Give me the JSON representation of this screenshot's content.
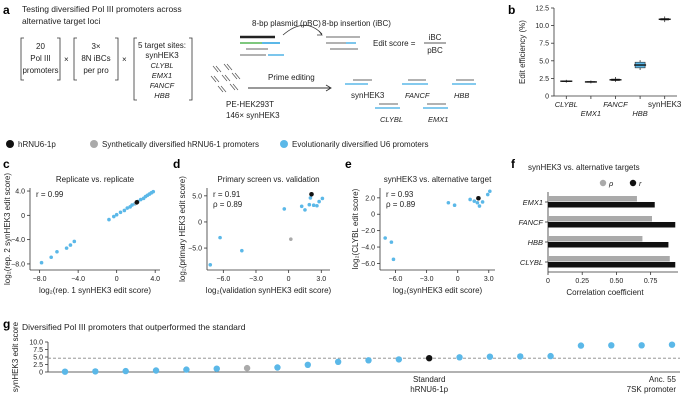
{
  "colors": {
    "black": "#111111",
    "grey": "#aaaaaa",
    "blue": "#5bb8e8",
    "pbc": "#333333",
    "ibc": "#7ec87e"
  },
  "panel_a": {
    "label": "a",
    "title_line1": "Testing diversified Pol III promoters across",
    "title_line2": "alternative target loci",
    "box1": [
      "20",
      "Pol III",
      "promoters"
    ],
    "box2": [
      "3×",
      "8N iBCs",
      "per pro"
    ],
    "box3": [
      "5 target sites:",
      "synHEK3",
      "CLYBL",
      "EMX1",
      "FANCF",
      "HBB"
    ],
    "times": "×",
    "plasmid_label": "8-bp plasmid (pBC)",
    "insertion_label": "8-bp insertion (iBC)",
    "edit_score_label": "Edit score =",
    "frac_num": "iBC",
    "frac_den": "pBC",
    "prime_editing": "Prime editing",
    "cell_line": "PE-HEK293T",
    "copies": "146× synHEK3",
    "sites": [
      "synHEK3",
      "FANCF",
      "HBB",
      "CLYBL",
      "EMX1"
    ]
  },
  "legend": {
    "items": [
      {
        "label": "hRNU6-1p",
        "color": "#111111"
      },
      {
        "label": "Synthetically diversified hRNU6-1 promoters",
        "color": "#aaaaaa"
      },
      {
        "label": "Evolutionarily diversified U6 promoters",
        "color": "#5bb8e8"
      }
    ]
  },
  "chart_data": [
    {
      "panel": "b",
      "type": "box",
      "ylabel": "Edit efficiency (%)",
      "ylim": [
        0,
        12.5
      ],
      "yticks": [
        "0",
        "2.5",
        "5.0",
        "7.5",
        "10.0",
        "12.5"
      ],
      "categories": [
        "CLYBL",
        "EMX1",
        "FANCF",
        "HBB",
        "synHEK3"
      ],
      "medians": [
        2.1,
        2.0,
        2.3,
        4.4,
        10.9
      ],
      "q1": [
        2.05,
        1.95,
        2.2,
        4.0,
        10.8
      ],
      "q3": [
        2.15,
        2.05,
        2.4,
        4.8,
        11.0
      ],
      "whisker_low": [
        1.9,
        1.8,
        2.0,
        3.7,
        10.5
      ],
      "whisker_high": [
        2.3,
        2.2,
        2.7,
        5.1,
        11.3
      ],
      "box_colors": [
        "#111111",
        "#111111",
        "#111111",
        "#5bb8e8",
        "#111111"
      ]
    },
    {
      "panel": "c",
      "type": "scatter",
      "title": "Replicate vs. replicate",
      "xlabel": "log₂(rep. 1 synHEK3 edit score)",
      "ylabel": "log₂(rep. 2 synHEK3 edit score)",
      "xlim": [
        -9,
        4.5
      ],
      "ylim": [
        -9,
        4.5
      ],
      "xticks": [
        -8,
        -4,
        0,
        4
      ],
      "yticks": [
        -8,
        -4,
        0,
        4
      ],
      "xtick_labels": [
        "−8.0",
        "−4.0",
        "0",
        "4.0"
      ],
      "ytick_labels": [
        "−8.0",
        "−4.0",
        "0",
        "4.0"
      ],
      "annotation": "r = 0.99",
      "points": [
        {
          "x": -7.8,
          "y": -7.8,
          "g": 2
        },
        {
          "x": -6.8,
          "y": -6.9,
          "g": 2
        },
        {
          "x": -6.2,
          "y": -6.0,
          "g": 2
        },
        {
          "x": -5.2,
          "y": -5.4,
          "g": 2
        },
        {
          "x": -4.8,
          "y": -4.9,
          "g": 2
        },
        {
          "x": -4.4,
          "y": -4.3,
          "g": 2
        },
        {
          "x": -0.8,
          "y": -0.7,
          "g": 2
        },
        {
          "x": -0.3,
          "y": -0.2,
          "g": 2
        },
        {
          "x": 0.0,
          "y": 0.1,
          "g": 2
        },
        {
          "x": 0.4,
          "y": 0.5,
          "g": 2
        },
        {
          "x": 0.8,
          "y": 0.8,
          "g": 2
        },
        {
          "x": 1.1,
          "y": 1.2,
          "g": 2
        },
        {
          "x": 1.4,
          "y": 1.4,
          "g": 2
        },
        {
          "x": 1.6,
          "y": 1.7,
          "g": 2
        },
        {
          "x": 1.9,
          "y": 1.9,
          "g": 2
        },
        {
          "x": 2.2,
          "y": 2.3,
          "g": 2
        },
        {
          "x": 2.5,
          "y": 2.6,
          "g": 2
        },
        {
          "x": 2.8,
          "y": 2.8,
          "g": 2
        },
        {
          "x": 3.0,
          "y": 3.1,
          "g": 2
        },
        {
          "x": 3.2,
          "y": 3.3,
          "g": 2
        },
        {
          "x": 3.4,
          "y": 3.5,
          "g": 2
        },
        {
          "x": 3.6,
          "y": 3.7,
          "g": 2
        },
        {
          "x": 3.8,
          "y": 3.9,
          "g": 2
        },
        {
          "x": 2.0,
          "y": 2.0,
          "g": 1
        },
        {
          "x": 2.1,
          "y": 2.15,
          "g": 0
        }
      ]
    },
    {
      "panel": "d",
      "type": "scatter",
      "title": "Primary screen vs. validation",
      "xlabel": "log₂(validation synHEK3 edit score)",
      "ylabel": "log₂(primary HEK3 edit score)",
      "xlim": [
        -7.5,
        3.8
      ],
      "ylim": [
        -9.2,
        6.5
      ],
      "xticks": [
        -6,
        -3,
        0,
        3
      ],
      "yticks": [
        -5,
        0,
        5
      ],
      "xtick_labels": [
        "−6.0",
        "−3.0",
        "0",
        "3.0"
      ],
      "ytick_labels": [
        "−5.0",
        "0",
        "5.0"
      ],
      "annotation": [
        "r = 0.91",
        "ρ = 0.89"
      ],
      "points": [
        {
          "x": -7.2,
          "y": -8.2,
          "g": 2
        },
        {
          "x": -6.3,
          "y": -3.0,
          "g": 2
        },
        {
          "x": -4.3,
          "y": -5.5,
          "g": 2
        },
        {
          "x": -0.4,
          "y": 2.5,
          "g": 2
        },
        {
          "x": 0.2,
          "y": -3.3,
          "g": 1
        },
        {
          "x": 1.2,
          "y": 3.0,
          "g": 2
        },
        {
          "x": 1.5,
          "y": 2.3,
          "g": 2
        },
        {
          "x": 1.9,
          "y": 3.3,
          "g": 2
        },
        {
          "x": 2.0,
          "y": 4.6,
          "g": 2
        },
        {
          "x": 2.3,
          "y": 3.2,
          "g": 2
        },
        {
          "x": 2.6,
          "y": 3.1,
          "g": 2
        },
        {
          "x": 2.8,
          "y": 3.9,
          "g": 2
        },
        {
          "x": 3.1,
          "y": 4.5,
          "g": 2
        },
        {
          "x": 2.1,
          "y": 5.3,
          "g": 0
        }
      ]
    },
    {
      "panel": "e",
      "type": "scatter",
      "title": "synHEK3 vs. alternative target",
      "xlabel": "log₂(synHEK3 edit score)",
      "ylabel": "log₂(CLYBL edit score)",
      "xlim": [
        -7.5,
        3.6
      ],
      "ylim": [
        -6.8,
        3.2
      ],
      "xticks": [
        -6,
        -3,
        0,
        3
      ],
      "yticks": [
        -6,
        -4,
        -2,
        0,
        2
      ],
      "xtick_labels": [
        "−6.0",
        "−3.0",
        "0",
        "3.0"
      ],
      "ytick_labels": [
        "−6.0",
        "−4.0",
        "−2.0",
        "0",
        "2.0"
      ],
      "annotation": [
        "r = 0.93",
        "ρ = 0.89"
      ],
      "points": [
        {
          "x": -7.0,
          "y": -2.9,
          "g": 2
        },
        {
          "x": -6.4,
          "y": -3.4,
          "g": 2
        },
        {
          "x": -6.2,
          "y": -5.5,
          "g": 2
        },
        {
          "x": -0.9,
          "y": 1.4,
          "g": 2
        },
        {
          "x": -0.3,
          "y": 1.1,
          "g": 2
        },
        {
          "x": 1.2,
          "y": 1.8,
          "g": 2
        },
        {
          "x": 1.6,
          "y": 1.6,
          "g": 2
        },
        {
          "x": 1.9,
          "y": 1.4,
          "g": 2
        },
        {
          "x": 2.1,
          "y": 1.0,
          "g": 2
        },
        {
          "x": 2.4,
          "y": 1.5,
          "g": 2
        },
        {
          "x": 2.9,
          "y": 2.4,
          "g": 2
        },
        {
          "x": 3.1,
          "y": 2.8,
          "g": 2
        },
        {
          "x": 2.0,
          "y": 1.95,
          "g": 0
        }
      ]
    },
    {
      "panel": "f",
      "type": "bar",
      "title": "synHEK3 vs. alternative targets",
      "xlabel": "Correlation coefficient",
      "xlim": [
        0,
        0.95
      ],
      "xticks": [
        0,
        0.25,
        0.5,
        0.75
      ],
      "xtick_labels": [
        "0",
        "0.25",
        "0.50",
        "0.75"
      ],
      "categories": [
        "EMX1",
        "FANCF",
        "HBB",
        "CLYBL"
      ],
      "series": [
        {
          "name": "ρ",
          "color": "#aaaaaa",
          "values": [
            0.65,
            0.76,
            0.69,
            0.89
          ]
        },
        {
          "name": "r",
          "color": "#111111",
          "values": [
            0.78,
            0.93,
            0.88,
            0.93
          ]
        }
      ]
    },
    {
      "panel": "g",
      "type": "scatter",
      "title": "Diversified Pol III promoters that outperformed the standard",
      "ylabel": "synHEK3 edit score",
      "ylim": [
        0,
        10
      ],
      "yticks": [
        0,
        2.5,
        5,
        7.5,
        10
      ],
      "ytick_labels": [
        "0",
        "2.5",
        "5.0",
        "7.5",
        "10.0"
      ],
      "reference_line": 4.6,
      "values": [
        0.1,
        0.2,
        0.3,
        0.5,
        0.8,
        1.1,
        1.3,
        1.5,
        2.4,
        3.4,
        3.9,
        4.2,
        4.6,
        4.9,
        5.1,
        5.2,
        5.3,
        8.8,
        8.9,
        8.9,
        9.1
      ],
      "groups": [
        2,
        2,
        2,
        2,
        2,
        2,
        1,
        2,
        2,
        2,
        2,
        2,
        0,
        2,
        2,
        2,
        2,
        2,
        2,
        2,
        2
      ],
      "annotations": [
        {
          "index": 12,
          "lines": [
            "Standard",
            "hRNU6-1p"
          ]
        },
        {
          "index": 20,
          "lines": [
            "Anc. 55",
            "7SK promoter"
          ]
        }
      ]
    }
  ]
}
